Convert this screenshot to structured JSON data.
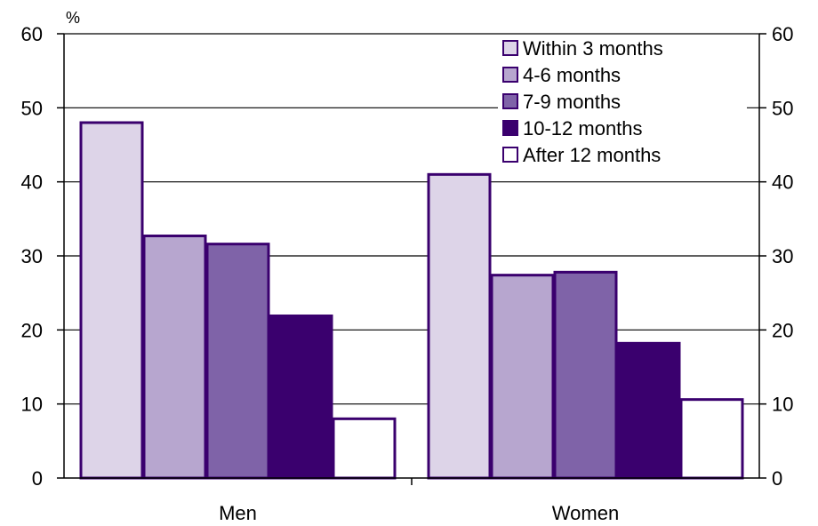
{
  "chart_data": {
    "type": "bar",
    "categories": [
      "Men",
      "Women"
    ],
    "series": [
      {
        "name": "Within 3 months",
        "values": [
          48,
          41
        ],
        "color": "#ddd4e8"
      },
      {
        "name": "4-6 months",
        "values": [
          32.7,
          27.4
        ],
        "color": "#b7a6cf"
      },
      {
        "name": "7-9 months",
        "values": [
          31.6,
          27.8
        ],
        "color": "#7f63a8"
      },
      {
        "name": "10-12 months",
        "values": [
          21.9,
          18.2
        ],
        "color": "#3a006e"
      },
      {
        "name": "After 12 months",
        "values": [
          8,
          10.6
        ],
        "color": "#ffffff"
      }
    ],
    "unit_label": "%",
    "ylim": [
      0,
      60
    ],
    "yticks": [
      "0",
      "10",
      "20",
      "30",
      "40",
      "50",
      "60"
    ],
    "grid": true,
    "legend_position": "top-right",
    "outline_color": "#3a006e"
  }
}
